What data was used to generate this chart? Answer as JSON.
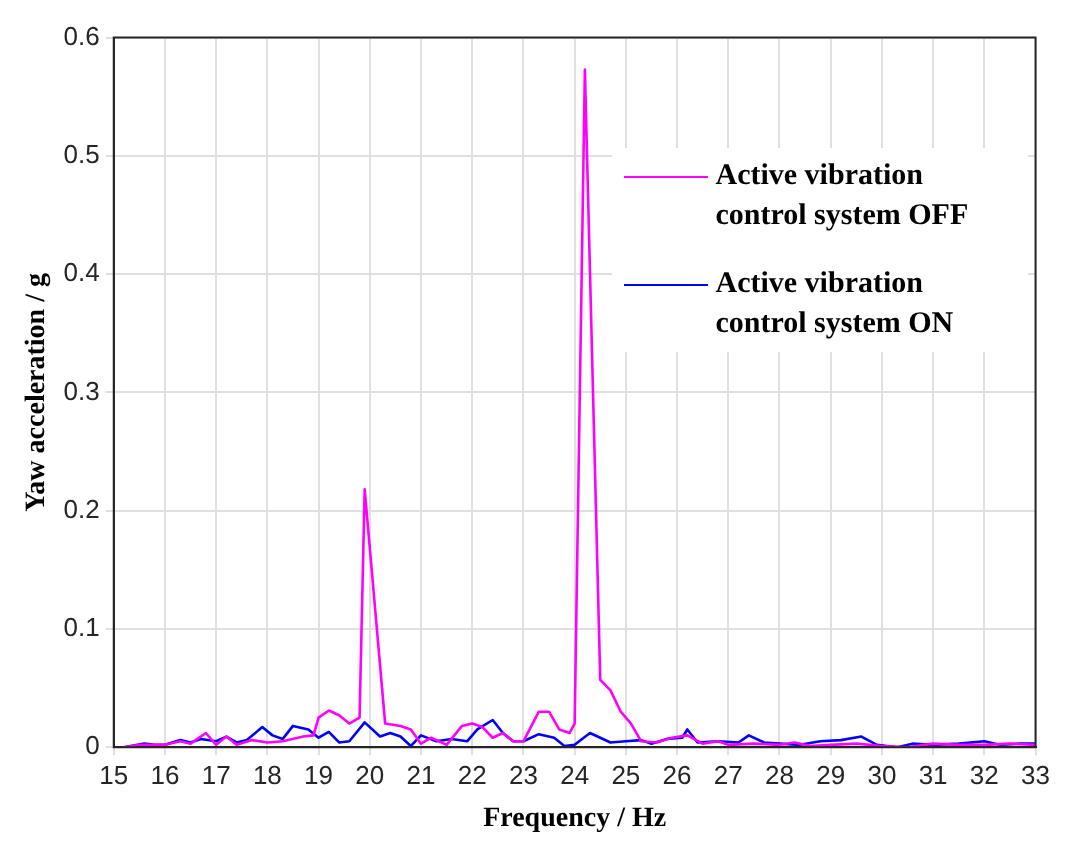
{
  "chart_data": {
    "type": "line",
    "xlabel": "Frequency / Hz",
    "ylabel": "Yaw acceleration / g",
    "xlim": [
      15,
      33
    ],
    "xticks": [
      15,
      16,
      17,
      18,
      19,
      20,
      21,
      22,
      23,
      24,
      25,
      26,
      27,
      28,
      29,
      30,
      31,
      32,
      33
    ],
    "ylim": [
      0,
      0.6
    ],
    "yticks": [
      0,
      0.1,
      0.2,
      0.3,
      0.4,
      0.5,
      0.6
    ],
    "grid": true,
    "legend": "top right",
    "marker": "none",
    "line_style": "solid",
    "series": [
      {
        "name": "Active vibration control system OFF",
        "color": "#ff00ff",
        "x": [
          15.2,
          15.5,
          16,
          16.3,
          16.5,
          16.8,
          17,
          17.2,
          17.4,
          17.7,
          18,
          18.3,
          18.7,
          18.9,
          19,
          19.2,
          19.4,
          19.6,
          19.8,
          19.9,
          20.3,
          20.6,
          20.8,
          21,
          21.2,
          21.5,
          21.8,
          22,
          22.2,
          22.4,
          22.6,
          22.8,
          23,
          23.3,
          23.5,
          23.7,
          23.9,
          24,
          24.2,
          24.5,
          24.7,
          24.9,
          25.1,
          25.3,
          25.6,
          25.9,
          26.2,
          26.5,
          26.8,
          27,
          27.5,
          28,
          28.3,
          28.6,
          29,
          29.5,
          30,
          30.5,
          31,
          31.5,
          32,
          32.5,
          33
        ],
        "values": [
          0,
          0.002,
          0.002,
          0.005,
          0.003,
          0.012,
          0.002,
          0.009,
          0.002,
          0.006,
          0.004,
          0.005,
          0.009,
          0.01,
          0.025,
          0.031,
          0.027,
          0.02,
          0.025,
          0.218,
          0.02,
          0.018,
          0.015,
          0.003,
          0.008,
          0.002,
          0.018,
          0.02,
          0.017,
          0.008,
          0.012,
          0.005,
          0.005,
          0.03,
          0.03,
          0.015,
          0.012,
          0.02,
          0.573,
          0.057,
          0.048,
          0.03,
          0.02,
          0.005,
          0.004,
          0.008,
          0.01,
          0.003,
          0.005,
          0.002,
          0.003,
          0.002,
          0.004,
          0.001,
          0.002,
          0.003,
          0.001,
          0,
          0.003,
          0.002,
          0.002,
          0.003,
          0.002
        ]
      },
      {
        "name": "Active vibration control system ON",
        "color": "#0000ff",
        "x": [
          15.2,
          15.6,
          15.8,
          16,
          16.3,
          16.5,
          16.7,
          17,
          17.2,
          17.4,
          17.6,
          17.9,
          18.1,
          18.3,
          18.5,
          18.8,
          19,
          19.2,
          19.4,
          19.6,
          19.9,
          20.2,
          20.4,
          20.6,
          20.8,
          21,
          21.3,
          21.6,
          21.9,
          22.1,
          22.4,
          22.6,
          22.8,
          23,
          23.3,
          23.6,
          23.8,
          24,
          24.3,
          24.5,
          24.7,
          25,
          25.3,
          25.5,
          25.8,
          26.1,
          26.2,
          26.4,
          26.8,
          27.2,
          27.4,
          27.7,
          28,
          28.4,
          28.8,
          29.2,
          29.6,
          29.9,
          30.3,
          30.6,
          31,
          31.5,
          32,
          32.3,
          32.7,
          33
        ],
        "values": [
          0,
          0.003,
          0.002,
          0.002,
          0.006,
          0.004,
          0.007,
          0.005,
          0.009,
          0.004,
          0.006,
          0.017,
          0.01,
          0.007,
          0.018,
          0.015,
          0.008,
          0.013,
          0.004,
          0.005,
          0.021,
          0.009,
          0.012,
          0.009,
          0.001,
          0.01,
          0.005,
          0.007,
          0.005,
          0.015,
          0.023,
          0.012,
          0.005,
          0.005,
          0.011,
          0.008,
          0.001,
          0.002,
          0.012,
          0.008,
          0.004,
          0.005,
          0.006,
          0.003,
          0.007,
          0.008,
          0.015,
          0.004,
          0.005,
          0.004,
          0.01,
          0.004,
          0.003,
          0.002,
          0.005,
          0.006,
          0.009,
          0.002,
          0,
          0.003,
          0.002,
          0.003,
          0.005,
          0.002,
          0.003,
          0.003
        ]
      }
    ]
  }
}
